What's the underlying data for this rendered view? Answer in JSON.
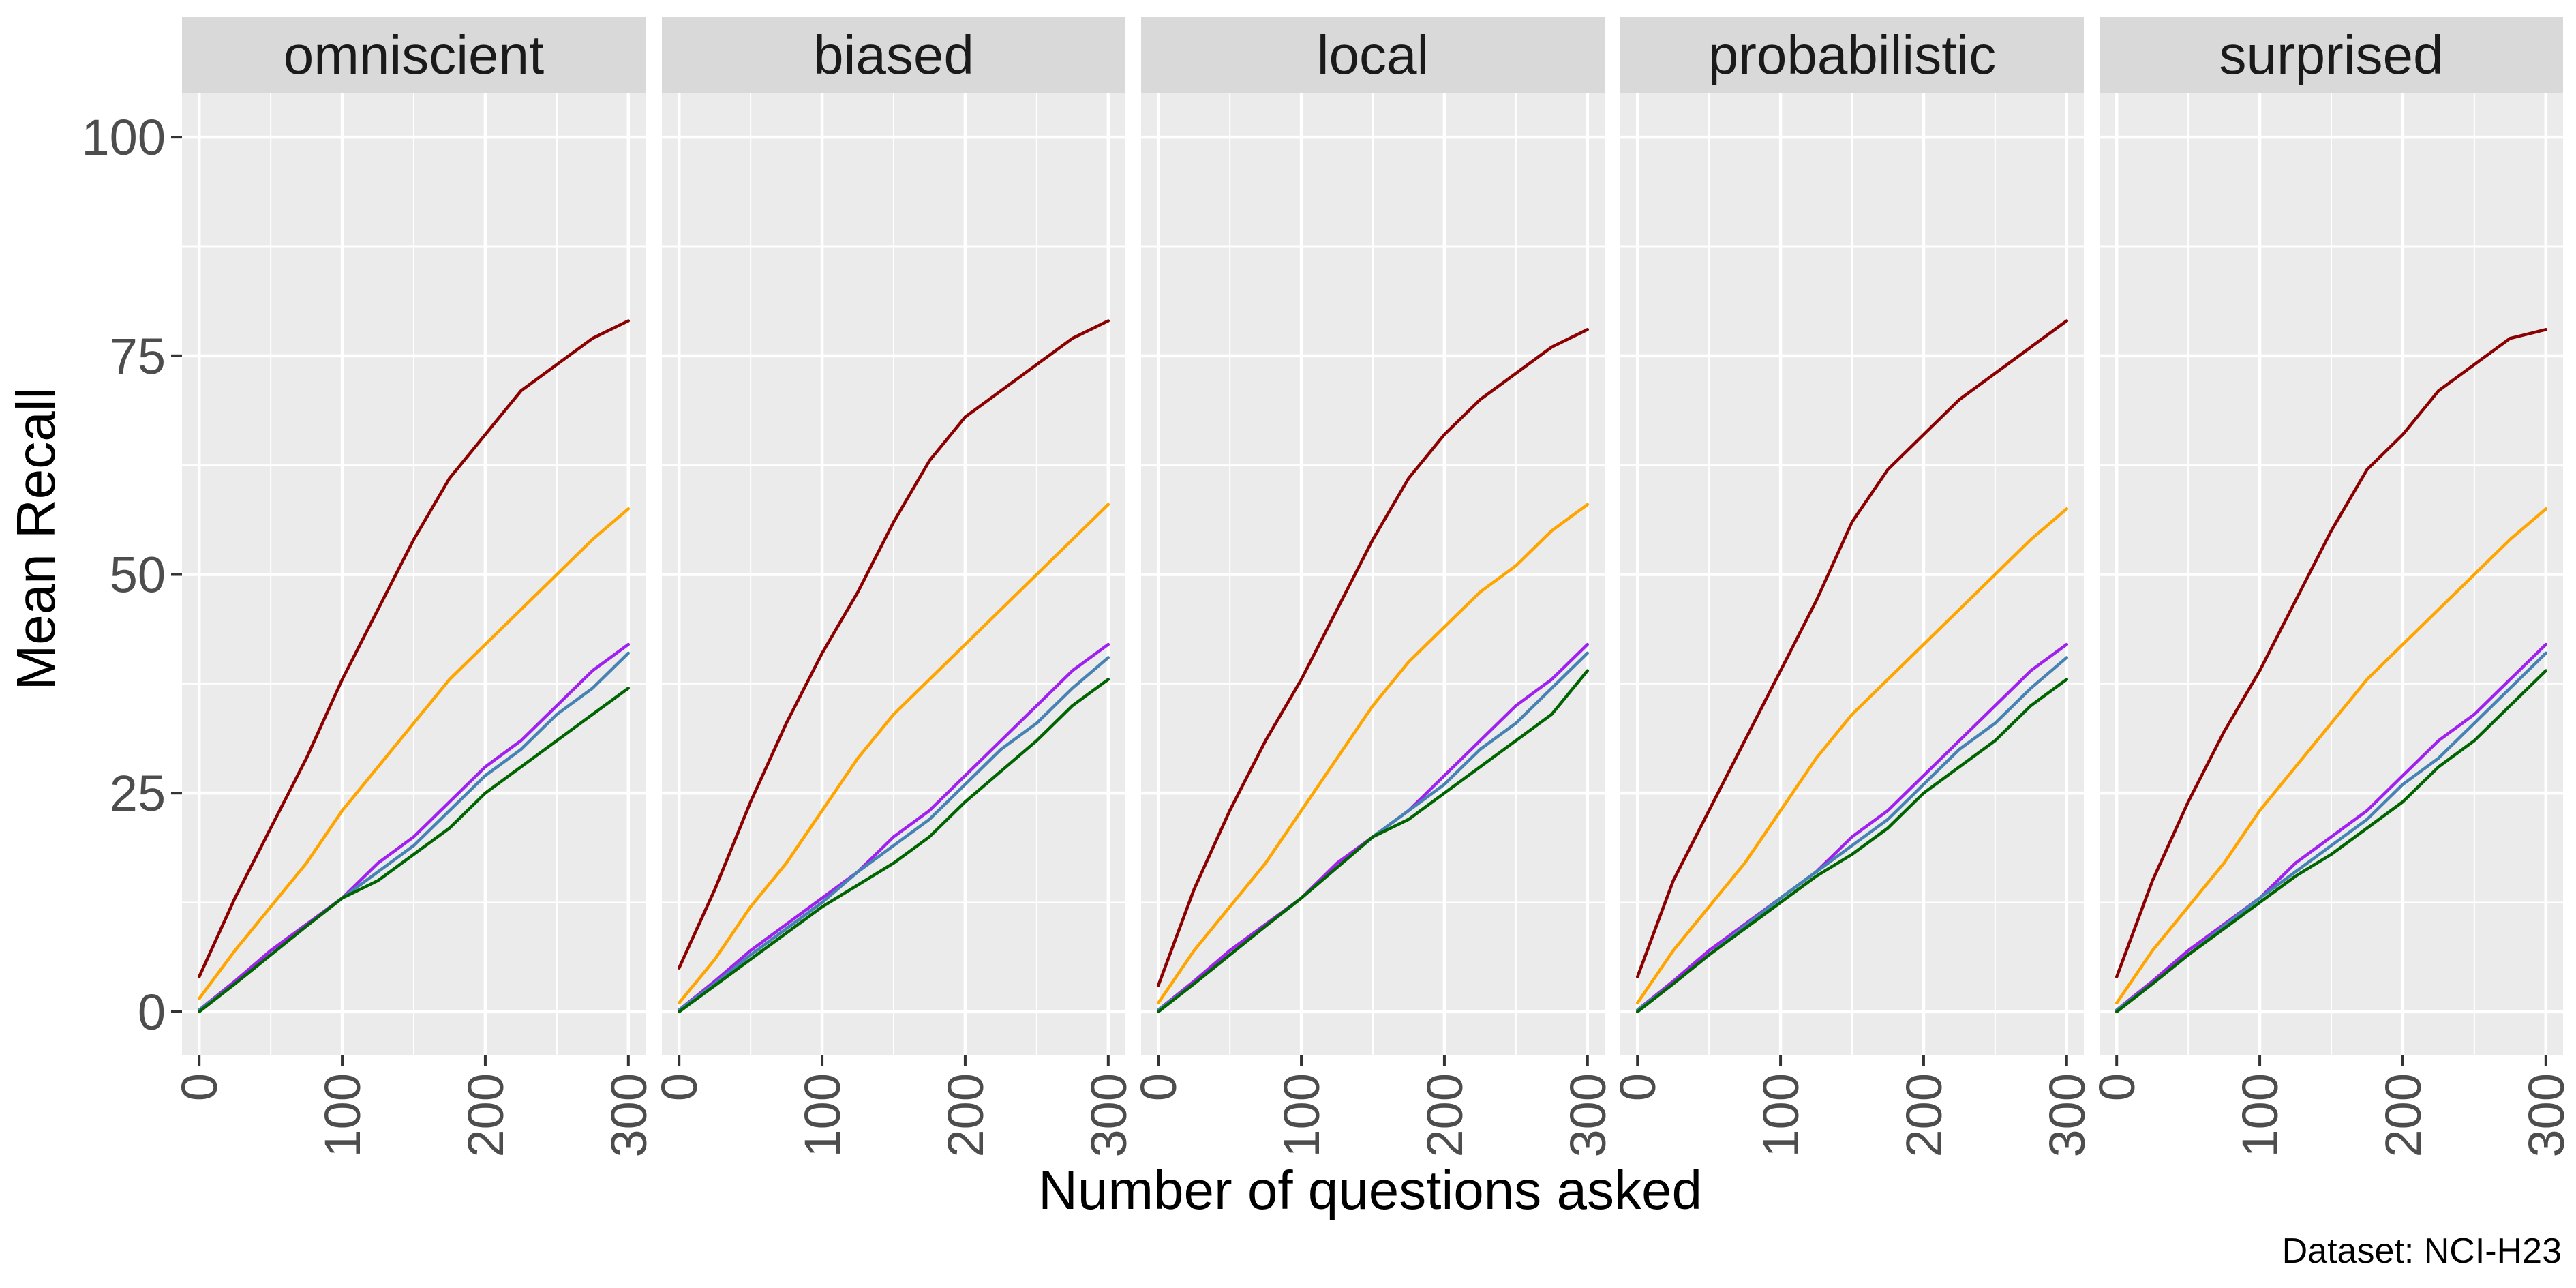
{
  "chart_data": {
    "type": "line",
    "facet_titles": [
      "omniscient",
      "biased",
      "local",
      "probabilistic",
      "surprised"
    ],
    "xlabel": "Number of questions asked",
    "ylabel": "Mean Recall",
    "xlim": [
      -12,
      312
    ],
    "ylim": [
      -5,
      105
    ],
    "xticks": [
      0,
      100,
      200,
      300
    ],
    "yticks": [
      0,
      25,
      50,
      75,
      100
    ],
    "grid": true,
    "legend": "none",
    "caption": "Dataset:  NCI-H23",
    "series_colors": [
      "#8B0000",
      "#FFA500",
      "#A020F0",
      "#4682B4",
      "#006400"
    ],
    "x": [
      0,
      25,
      50,
      75,
      100,
      125,
      150,
      175,
      200,
      225,
      250,
      275,
      300
    ],
    "facets": [
      {
        "title": "omniscient",
        "series": [
          {
            "color": "#8B0000",
            "values": [
              4,
              13,
              21,
              29,
              38,
              46,
              54,
              61,
              66,
              71,
              74,
              77,
              79
            ]
          },
          {
            "color": "#FFA500",
            "values": [
              1.5,
              7,
              12,
              17,
              23,
              28,
              33,
              38,
              42,
              46,
              50,
              54,
              57.5
            ]
          },
          {
            "color": "#A020F0",
            "values": [
              0.2,
              3.5,
              7,
              10,
              13,
              17,
              20,
              24,
              28,
              31,
              35,
              39,
              42
            ]
          },
          {
            "color": "#4682B4",
            "values": [
              0.2,
              3.2,
              6.5,
              9.8,
              13,
              16,
              19,
              23,
              27,
              30,
              34,
              37,
              41
            ]
          },
          {
            "color": "#006400",
            "values": [
              0,
              3.2,
              6.5,
              9.8,
              13,
              15,
              18,
              21,
              25,
              28,
              31,
              34,
              37
            ]
          }
        ]
      },
      {
        "title": "biased",
        "series": [
          {
            "color": "#8B0000",
            "values": [
              5,
              14,
              24,
              33,
              41,
              48,
              56,
              63,
              68,
              71,
              74,
              77,
              79
            ]
          },
          {
            "color": "#FFA500",
            "values": [
              1,
              6,
              12,
              17,
              23,
              29,
              34,
              38,
              42,
              46,
              50,
              54,
              58
            ]
          },
          {
            "color": "#A020F0",
            "values": [
              0.2,
              3.5,
              7,
              10,
              13,
              16,
              20,
              23,
              27,
              31,
              35,
              39,
              42
            ]
          },
          {
            "color": "#4682B4",
            "values": [
              0.2,
              3.2,
              6.5,
              9.5,
              12.5,
              16,
              19,
              22,
              26,
              30,
              33,
              37,
              40.5
            ]
          },
          {
            "color": "#006400",
            "values": [
              0,
              3,
              6,
              9,
              12,
              14.5,
              17,
              20,
              24,
              27.5,
              31,
              35,
              38
            ]
          }
        ]
      },
      {
        "title": "local",
        "series": [
          {
            "color": "#8B0000",
            "values": [
              3,
              14,
              23,
              31,
              38,
              46,
              54,
              61,
              66,
              70,
              73,
              76,
              78
            ]
          },
          {
            "color": "#FFA500",
            "values": [
              1,
              7,
              12,
              17,
              23,
              29,
              35,
              40,
              44,
              48,
              51,
              55,
              58
            ]
          },
          {
            "color": "#A020F0",
            "values": [
              0.2,
              3.5,
              7,
              10,
              13,
              17,
              20,
              23,
              27,
              31,
              35,
              38,
              42
            ]
          },
          {
            "color": "#4682B4",
            "values": [
              0.2,
              3.2,
              6.5,
              9.8,
              13,
              16.5,
              20,
              23,
              26,
              30,
              33,
              37,
              41
            ]
          },
          {
            "color": "#006400",
            "values": [
              0,
              3.2,
              6.5,
              9.8,
              13,
              16.5,
              20,
              22,
              25,
              28,
              31,
              34,
              39
            ]
          }
        ]
      },
      {
        "title": "probabilistic",
        "series": [
          {
            "color": "#8B0000",
            "values": [
              4,
              15,
              23,
              31,
              39,
              47,
              56,
              62,
              66,
              70,
              73,
              76,
              79
            ]
          },
          {
            "color": "#FFA500",
            "values": [
              1,
              7,
              12,
              17,
              23,
              29,
              34,
              38,
              42,
              46,
              50,
              54,
              57.5
            ]
          },
          {
            "color": "#A020F0",
            "values": [
              0.2,
              3.5,
              7,
              10,
              13,
              16,
              20,
              23,
              27,
              31,
              35,
              39,
              42
            ]
          },
          {
            "color": "#4682B4",
            "values": [
              0.2,
              3.2,
              6.5,
              9.8,
              13,
              16,
              19,
              22,
              26,
              30,
              33,
              37,
              40.5
            ]
          },
          {
            "color": "#006400",
            "values": [
              0,
              3.2,
              6.5,
              9.5,
              12.5,
              15.5,
              18,
              21,
              25,
              28,
              31,
              35,
              38
            ]
          }
        ]
      },
      {
        "title": "surprised",
        "series": [
          {
            "color": "#8B0000",
            "values": [
              4,
              15,
              24,
              32,
              39,
              47,
              55,
              62,
              66,
              71,
              74,
              77,
              78
            ]
          },
          {
            "color": "#FFA500",
            "values": [
              1,
              7,
              12,
              17,
              23,
              28,
              33,
              38,
              42,
              46,
              50,
              54,
              57.5
            ]
          },
          {
            "color": "#A020F0",
            "values": [
              0.2,
              3.5,
              7,
              10,
              13,
              17,
              20,
              23,
              27,
              31,
              34,
              38,
              42
            ]
          },
          {
            "color": "#4682B4",
            "values": [
              0.2,
              3.2,
              6.5,
              9.8,
              13,
              16,
              19,
              22,
              26,
              29,
              33,
              37,
              41
            ]
          },
          {
            "color": "#006400",
            "values": [
              0,
              3.2,
              6.5,
              9.5,
              12.5,
              15.5,
              18,
              21,
              24,
              28,
              31,
              35,
              39
            ]
          }
        ]
      }
    ]
  }
}
